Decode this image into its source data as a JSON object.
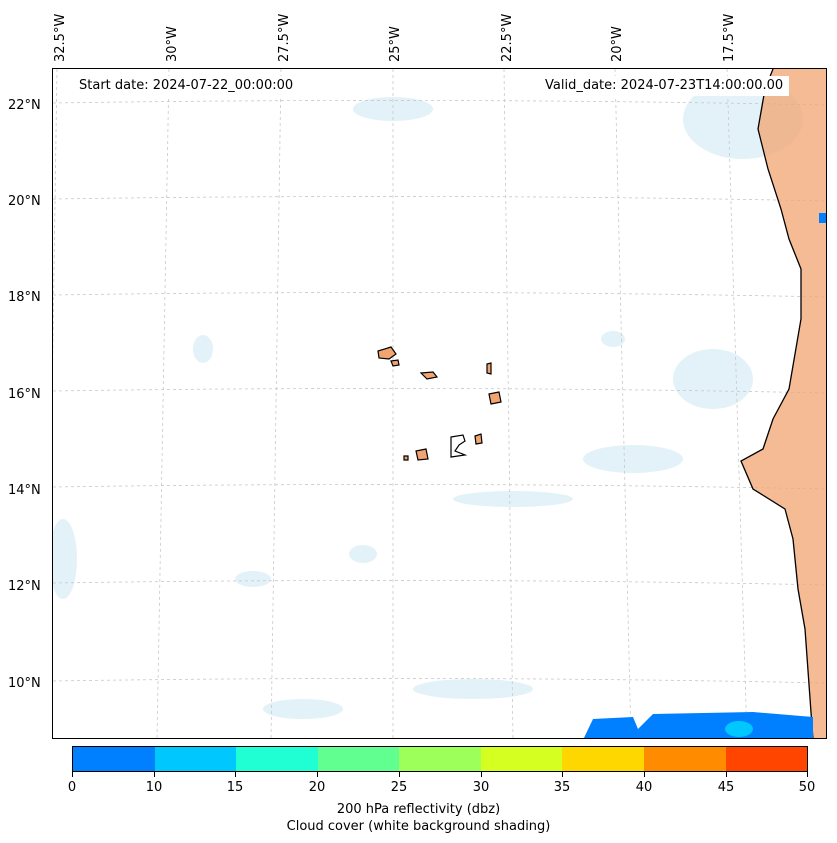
{
  "map": {
    "start_label": "Start date: 2024-07-22_00:00:00",
    "valid_label": "Valid_date: 2024-07-23T14:00:00.00",
    "lon_labels": [
      "32.5°W",
      "30°W",
      "27.5°W",
      "25°W",
      "22.5°W",
      "20°W",
      "17.5°W"
    ],
    "lat_labels": [
      "22°N",
      "20°N",
      "18°N",
      "16°N",
      "14°N",
      "12°N",
      "10°N"
    ],
    "ocean_color": "#ffffff",
    "land_color": "#f2a470",
    "coastline_color": "#000000",
    "cloud_color": "#bfe3ef",
    "reflectivity_low_color": "#0080ff"
  },
  "colorbar": {
    "ticks": [
      "0",
      "10",
      "15",
      "20",
      "25",
      "30",
      "35",
      "40",
      "45",
      "50"
    ],
    "colors": [
      "#0080ff",
      "#00c8ff",
      "#20ffd4",
      "#60ff90",
      "#9cff5a",
      "#d4ff20",
      "#ffd700",
      "#ff8c00",
      "#ff4500"
    ],
    "label_line1": "200 hPa reflectivity (dbz)",
    "label_line2": "Cloud cover (white background shading)"
  }
}
